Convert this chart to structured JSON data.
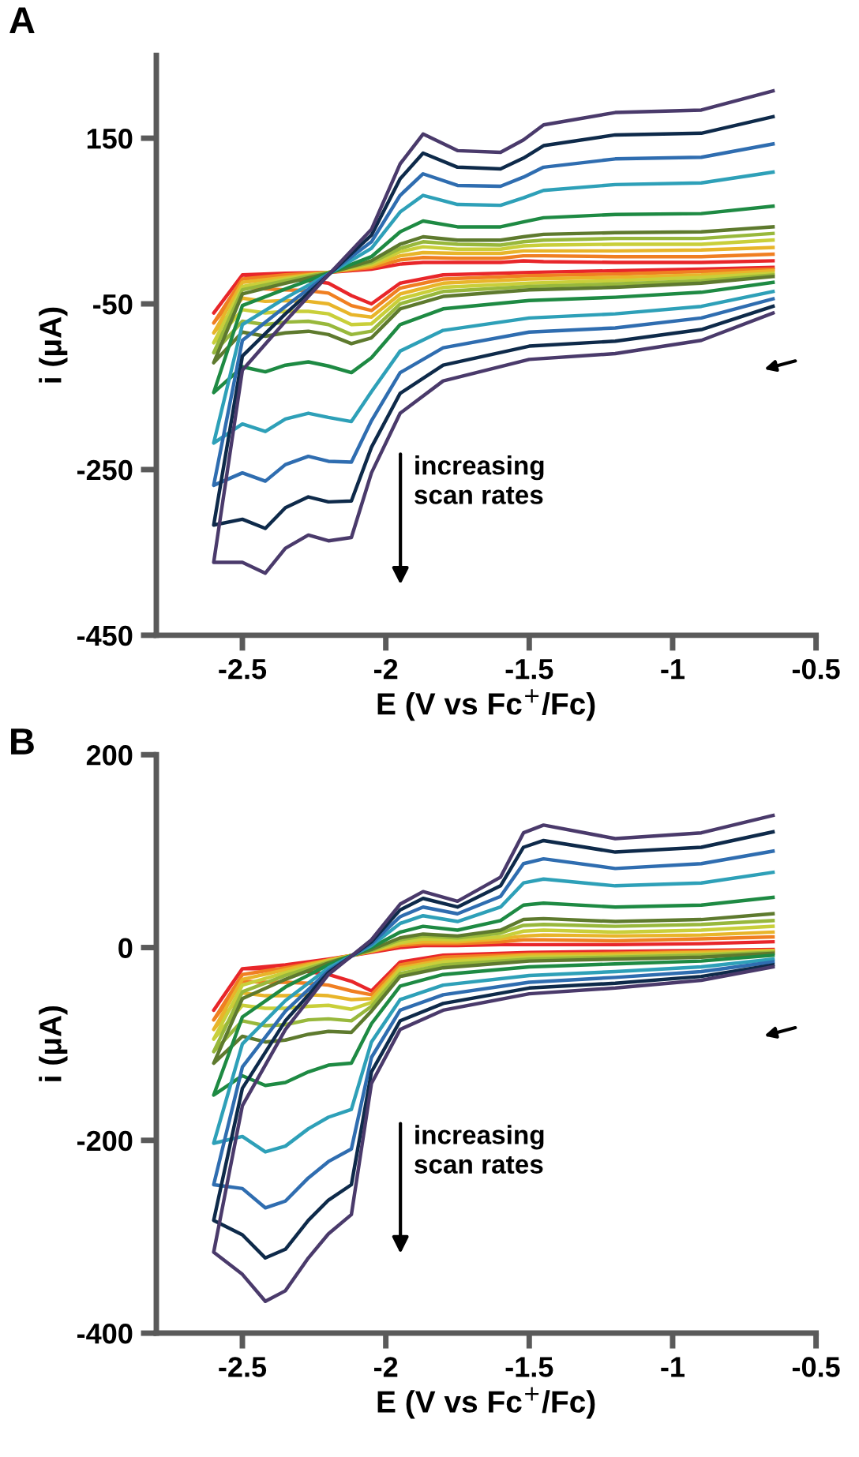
{
  "chart_data": [
    {
      "type": "line",
      "title": "A",
      "xlabel": "E (V vs Fc$^{+}$/Fc)",
      "ylabel": "i (μA)",
      "xlim": [
        -2.8,
        -0.5
      ],
      "xticks": [
        -2.5,
        -2,
        -1.5,
        -1,
        -0.5
      ],
      "ylim": [
        -450,
        250
      ],
      "yticks": [
        150,
        -50,
        -250,
        -450
      ],
      "grid": false,
      "legend": false,
      "marker": "none",
      "line_style": "solid",
      "annotations": [
        "increasing\nscan rates"
      ],
      "x": [
        -0.65,
        -0.9,
        -1.2,
        -1.5,
        -1.8,
        -1.95,
        -2.05,
        -2.12,
        -2.2,
        -2.27,
        -2.35,
        -2.42,
        -2.5,
        -2.6,
        -2.6,
        -2.5,
        -2.35,
        -2.2,
        -2.05,
        -1.95,
        -1.87,
        -1.75,
        -1.6,
        -1.52,
        -1.45,
        -1.2,
        -0.9,
        -0.65
      ],
      "series": [
        {
          "color": "#e8262a",
          "values": [
            -6,
            -8,
            -10,
            -12,
            -15,
            -25,
            -50,
            -40,
            -25,
            -22,
            -20,
            -18,
            -15,
            -61,
            -61,
            -15,
            -13,
            -12,
            -8,
            -2,
            0,
            0,
            0,
            2,
            1,
            0,
            0,
            2
          ]
        },
        {
          "color": "#f07f22",
          "values": [
            -8,
            -11,
            -14,
            -16,
            -20,
            -31,
            -58,
            -52,
            -37,
            -34,
            -33,
            -32,
            -29,
            -73,
            -73,
            -20,
            -15,
            -12,
            -6,
            3,
            6,
            5,
            5,
            8,
            8,
            7,
            7,
            10
          ]
        },
        {
          "color": "#e8b52a",
          "values": [
            -10,
            -15,
            -18,
            -20,
            -25,
            -38,
            -66,
            -63,
            -50,
            -47,
            -46,
            -47,
            -43,
            -85,
            -85,
            -24,
            -18,
            -12,
            -4,
            8,
            12,
            11,
            11,
            14,
            14,
            14,
            15,
            18
          ]
        },
        {
          "color": "#c9cf3a",
          "values": [
            -13,
            -18,
            -22,
            -25,
            -30,
            -44,
            -74,
            -75,
            -62,
            -59,
            -59,
            -61,
            -57,
            -97,
            -97,
            -29,
            -20,
            -12,
            -2,
            13,
            19,
            16,
            16,
            20,
            21,
            22,
            22,
            27
          ]
        },
        {
          "color": "#98b83c",
          "values": [
            -15,
            -22,
            -26,
            -29,
            -35,
            -50,
            -83,
            -87,
            -75,
            -71,
            -72,
            -75,
            -71,
            -109,
            -109,
            -33,
            -22,
            -12,
            0,
            17,
            25,
            22,
            21,
            25,
            27,
            29,
            29,
            35
          ]
        },
        {
          "color": "#5e7a2e",
          "values": [
            -17,
            -25,
            -30,
            -33,
            -41,
            -56,
            -91,
            -98,
            -87,
            -83,
            -85,
            -89,
            -84,
            -121,
            -121,
            -38,
            -25,
            -13,
            2,
            22,
            31,
            27,
            27,
            31,
            34,
            36,
            37,
            43
          ]
        },
        {
          "color": "#1e8a43",
          "values": [
            -24,
            -36,
            -42,
            -46,
            -56,
            -75,
            -115,
            -133,
            -125,
            -120,
            -124,
            -132,
            -126,
            -157,
            -157,
            -52,
            -32,
            -13,
            7,
            37,
            50,
            43,
            43,
            49,
            54,
            58,
            59,
            68
          ]
        },
        {
          "color": "#2ea0b8",
          "values": [
            -35,
            -53,
            -62,
            -67,
            -82,
            -107,
            -156,
            -192,
            -187,
            -182,
            -189,
            -204,
            -195,
            -218,
            -218,
            -75,
            -43,
            -14,
            17,
            61,
            81,
            70,
            69,
            78,
            87,
            94,
            96,
            109
          ]
        },
        {
          "color": "#2f6db0",
          "values": [
            -44,
            -67,
            -79,
            -84,
            -103,
            -133,
            -191,
            -241,
            -240,
            -234,
            -244,
            -264,
            -254,
            -269,
            -269,
            -94,
            -53,
            -14,
            25,
            81,
            107,
            93,
            92,
            103,
            115,
            125,
            127,
            143
          ]
        },
        {
          "color": "#0e2a4a",
          "values": [
            -53,
            -81,
            -95,
            -101,
            -124,
            -158,
            -223,
            -288,
            -289,
            -283,
            -296,
            -321,
            -310,
            -317,
            -317,
            -113,
            -62,
            -15,
            33,
            101,
            132,
            115,
            113,
            126,
            141,
            154,
            156,
            176
          ]
        },
        {
          "color": "#4a3a6b",
          "values": [
            -61,
            -94,
            -110,
            -117,
            -143,
            -182,
            -254,
            -332,
            -336,
            -329,
            -345,
            -375,
            -362,
            -362,
            -362,
            -130,
            -71,
            -15,
            40,
            119,
            155,
            135,
            133,
            148,
            166,
            181,
            184,
            207
          ]
        }
      ]
    },
    {
      "type": "line",
      "title": "B",
      "xlabel": "E (V vs Fc$^{+}$/Fc)",
      "ylabel": "i (μA)",
      "xlim": [
        -2.8,
        -0.5
      ],
      "xticks": [
        -2.5,
        -2,
        -1.5,
        -1,
        -0.5
      ],
      "ylim": [
        -400,
        200
      ],
      "yticks": [
        200,
        0,
        -200,
        -400
      ],
      "grid": false,
      "legend": false,
      "marker": "none",
      "line_style": "solid",
      "annotations": [
        "increasing\nscan rates"
      ],
      "x": [
        -0.65,
        -0.9,
        -1.2,
        -1.5,
        -1.8,
        -1.95,
        -2.05,
        -2.12,
        -2.2,
        -2.27,
        -2.35,
        -2.42,
        -2.5,
        -2.6,
        -2.6,
        -2.5,
        -2.35,
        -2.2,
        -2.05,
        -1.95,
        -1.87,
        -1.75,
        -1.6,
        -1.52,
        -1.45,
        -1.2,
        -0.9,
        -0.65
      ],
      "series": [
        {
          "color": "#e8262a",
          "values": [
            -2,
            -3,
            -4,
            -5,
            -8,
            -15,
            -45,
            -35,
            -28,
            -25,
            -23,
            -22,
            -22,
            -65,
            -65,
            -22,
            -18,
            -12,
            -5,
            0,
            2,
            2,
            3,
            3,
            3,
            3,
            4,
            6
          ]
        },
        {
          "color": "#f07f22",
          "values": [
            -3,
            -4,
            -6,
            -7,
            -10,
            -18,
            -49,
            -45,
            -39,
            -37,
            -36,
            -36,
            -35,
            -75,
            -75,
            -28,
            -21,
            -13,
            -4,
            2,
            4,
            4,
            6,
            8,
            8,
            7,
            9,
            11
          ]
        },
        {
          "color": "#e8b52a",
          "values": [
            -3,
            -5,
            -7,
            -8,
            -13,
            -21,
            -53,
            -54,
            -50,
            -49,
            -50,
            -50,
            -47,
            -85,
            -85,
            -33,
            -23,
            -13,
            -4,
            4,
            6,
            6,
            9,
            12,
            13,
            12,
            13,
            16
          ]
        },
        {
          "color": "#c9cf3a",
          "values": [
            -4,
            -7,
            -9,
            -10,
            -15,
            -23,
            -57,
            -64,
            -60,
            -61,
            -63,
            -63,
            -60,
            -95,
            -95,
            -39,
            -26,
            -14,
            -3,
            5,
            9,
            8,
            11,
            17,
            18,
            16,
            18,
            22
          ]
        },
        {
          "color": "#98b83c",
          "values": [
            -5,
            -8,
            -10,
            -12,
            -18,
            -27,
            -61,
            -76,
            -74,
            -75,
            -80,
            -81,
            -76,
            -108,
            -108,
            -46,
            -29,
            -15,
            -3,
            8,
            12,
            10,
            15,
            23,
            24,
            22,
            24,
            28
          ]
        },
        {
          "color": "#5e7a2e",
          "values": [
            -6,
            -10,
            -12,
            -14,
            -21,
            -30,
            -66,
            -88,
            -87,
            -90,
            -96,
            -98,
            -92,
            -120,
            -120,
            -53,
            -33,
            -16,
            -2,
            10,
            14,
            12,
            18,
            29,
            30,
            27,
            29,
            35
          ]
        },
        {
          "color": "#1e8a43",
          "values": [
            -8,
            -14,
            -17,
            -20,
            -28,
            -40,
            -79,
            -120,
            -122,
            -129,
            -140,
            -143,
            -133,
            -153,
            -153,
            -72,
            -41,
            -18,
            0,
            16,
            22,
            18,
            28,
            44,
            46,
            42,
            44,
            52
          ]
        },
        {
          "color": "#2ea0b8",
          "values": [
            -12,
            -20,
            -25,
            -29,
            -39,
            -54,
            -98,
            -168,
            -176,
            -188,
            -206,
            -212,
            -196,
            -203,
            -203,
            -100,
            -55,
            -21,
            2,
            25,
            33,
            27,
            42,
            67,
            71,
            64,
            67,
            78
          ]
        },
        {
          "color": "#2f6db0",
          "values": [
            -15,
            -25,
            -31,
            -36,
            -49,
            -65,
            -114,
            -209,
            -222,
            -239,
            -263,
            -270,
            -250,
            -246,
            -246,
            -124,
            -66,
            -24,
            4,
            32,
            42,
            35,
            53,
            87,
            92,
            82,
            87,
            100
          ]
        },
        {
          "color": "#0e2a4a",
          "values": [
            -18,
            -30,
            -37,
            -42,
            -58,
            -76,
            -129,
            -246,
            -262,
            -283,
            -313,
            -322,
            -298,
            -283,
            -283,
            -146,
            -76,
            -26,
            6,
            39,
            51,
            42,
            64,
            104,
            111,
            99,
            104,
            120
          ]
        },
        {
          "color": "#4a3a6b",
          "values": [
            -20,
            -34,
            -42,
            -48,
            -65,
            -85,
            -141,
            -277,
            -297,
            -322,
            -356,
            -367,
            -339,
            -316,
            -316,
            -164,
            -85,
            -28,
            8,
            45,
            58,
            48,
            73,
            119,
            127,
            113,
            119,
            137
          ]
        }
      ]
    }
  ]
}
